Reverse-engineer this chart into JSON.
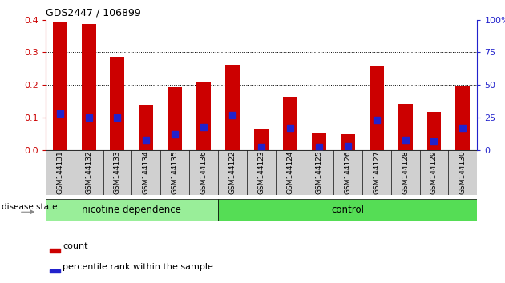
{
  "title": "GDS2447 / 106899",
  "samples": [
    "GSM144131",
    "GSM144132",
    "GSM144133",
    "GSM144134",
    "GSM144135",
    "GSM144136",
    "GSM144122",
    "GSM144123",
    "GSM144124",
    "GSM144125",
    "GSM144126",
    "GSM144127",
    "GSM144128",
    "GSM144129",
    "GSM144130"
  ],
  "count_values": [
    0.395,
    0.388,
    0.286,
    0.138,
    0.192,
    0.207,
    0.262,
    0.065,
    0.163,
    0.052,
    0.05,
    0.256,
    0.142,
    0.117,
    0.197
  ],
  "percentile_values": [
    0.113,
    0.1,
    0.1,
    0.03,
    0.047,
    0.07,
    0.107,
    0.01,
    0.068,
    0.01,
    0.012,
    0.093,
    0.03,
    0.025,
    0.068
  ],
  "red_color": "#cc0000",
  "blue_color": "#2222cc",
  "bar_width": 0.5,
  "ylim_left": [
    0,
    0.4
  ],
  "ylim_right": [
    0,
    100
  ],
  "yticks_left": [
    0,
    0.1,
    0.2,
    0.3,
    0.4
  ],
  "yticks_right": [
    0,
    25,
    50,
    75,
    100
  ],
  "groups": [
    {
      "label": "nicotine dependence",
      "start": 0,
      "end": 5,
      "color": "#99ee99"
    },
    {
      "label": "control",
      "start": 6,
      "end": 14,
      "color": "#55dd55"
    }
  ],
  "group_label": "disease state",
  "tick_label_color": "#555555",
  "tick_box_color": "#d0d0d0",
  "plot_bg": "#ffffff",
  "legend": [
    {
      "label": "count",
      "color": "#cc0000"
    },
    {
      "label": "percentile rank within the sample",
      "color": "#2222cc"
    }
  ]
}
